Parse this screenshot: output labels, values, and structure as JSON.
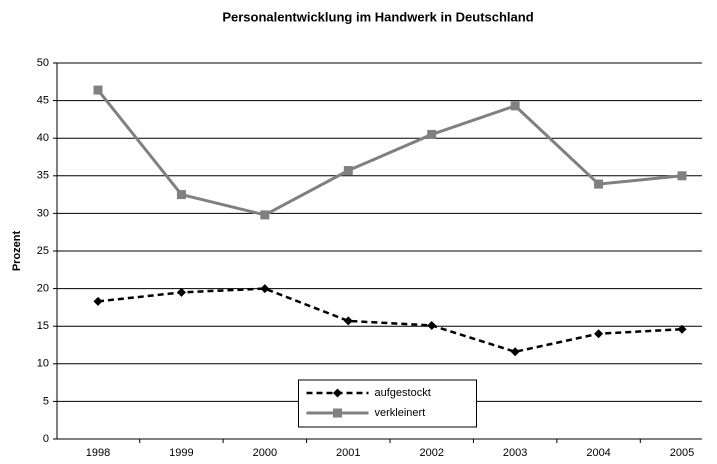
{
  "chart_data": {
    "type": "line",
    "title": "Personalentwicklung im Handwerk in Deutschland",
    "y_label": "Prozent",
    "categories": [
      "1998",
      "1999",
      "2000",
      "2001",
      "2002",
      "2003",
      "2004",
      "2005"
    ],
    "series": [
      {
        "name": "aufgestockt",
        "color": "#000000",
        "line_style": "dashed",
        "marker": "diamond",
        "values": [
          18.3,
          19.5,
          20.0,
          15.7,
          15.1,
          11.6,
          14.0,
          14.6
        ]
      },
      {
        "name": "verkleinert",
        "color": "#808080",
        "line_style": "solid",
        "marker": "square",
        "values": [
          46.4,
          32.5,
          29.8,
          35.7,
          40.5,
          44.3,
          33.9,
          35.0
        ]
      }
    ],
    "ylim": [
      0,
      50
    ],
    "yticks": [
      0,
      5,
      10,
      15,
      20,
      25,
      30,
      35,
      40,
      45,
      50
    ],
    "grid": true,
    "legend": "bottom"
  }
}
